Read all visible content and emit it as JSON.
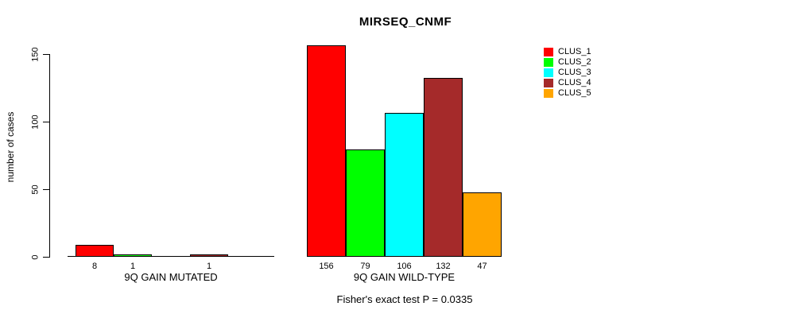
{
  "title": "MIRSEQ_CNMF",
  "y_axis": {
    "label": "number of cases"
  },
  "footer": "Fisher's exact test P = 0.0335",
  "legend": {
    "items": [
      {
        "label": "CLUS_1",
        "color": "#FF0000"
      },
      {
        "label": "CLUS_2",
        "color": "#00FF00"
      },
      {
        "label": "CLUS_3",
        "color": "#00FFFF"
      },
      {
        "label": "CLUS_4",
        "color": "#A52A2A"
      },
      {
        "label": "CLUS_5",
        "color": "#FFA500"
      }
    ]
  },
  "chart_data": {
    "type": "bar",
    "title": "MIRSEQ_CNMF",
    "ylabel": "number of cases",
    "ylim": [
      0,
      160
    ],
    "yticks": [
      0,
      50,
      100,
      150
    ],
    "grid": false,
    "legend_position": "top-right",
    "series_names": [
      "CLUS_1",
      "CLUS_2",
      "CLUS_3",
      "CLUS_4",
      "CLUS_5"
    ],
    "series_colors": [
      "#FF0000",
      "#00FF00",
      "#00FFFF",
      "#A52A2A",
      "#FFA500"
    ],
    "groups": [
      {
        "label": "9Q GAIN MUTATED",
        "values": [
          8,
          1,
          0,
          1,
          0
        ],
        "bar_labels": [
          "8",
          "1",
          "",
          "1",
          ""
        ]
      },
      {
        "label": "9Q GAIN WILD-TYPE",
        "values": [
          156,
          79,
          106,
          132,
          47
        ],
        "bar_labels": [
          "156",
          "79",
          "106",
          "132",
          "47"
        ]
      }
    ],
    "annotation": "Fisher's exact test P = 0.0335"
  }
}
